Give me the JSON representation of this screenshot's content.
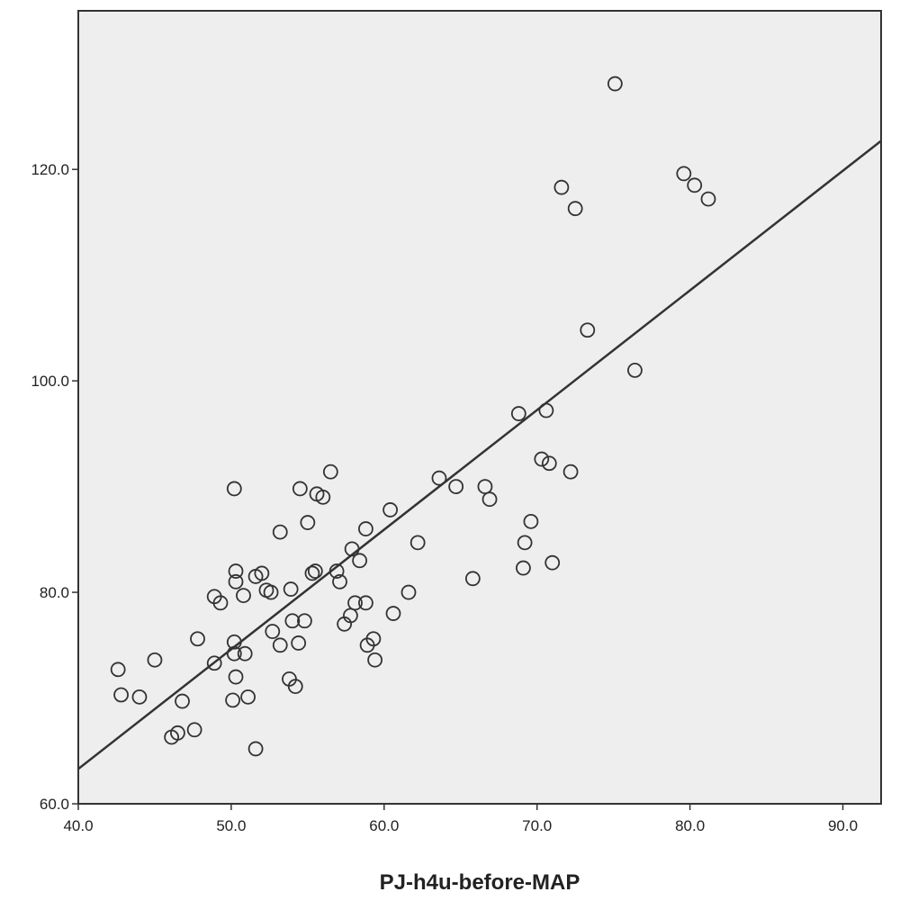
{
  "chart_data": {
    "type": "scatter",
    "title": "",
    "xlabel": "PJ-h4u-before-MAP",
    "ylabel": "",
    "xlim": [
      40,
      92.5
    ],
    "ylim": [
      60,
      135
    ],
    "x_ticks": [
      40,
      50,
      60,
      70,
      80,
      90
    ],
    "x_tick_labels": [
      "40.0",
      "50.0",
      "60.0",
      "70.0",
      "80.0",
      "90.0"
    ],
    "y_ticks": [
      60,
      80,
      100,
      120
    ],
    "y_tick_labels": [
      "60.0",
      "80.0",
      "100.0",
      "120.0"
    ],
    "grid": false,
    "legend": "none",
    "colors": {
      "plot_background": "#eeeeee",
      "frame": "#333333",
      "marker": "#333333",
      "fit_line": "#333333"
    },
    "marker": "open-circle",
    "series": [
      {
        "points": [
          [
            42.6,
            72.7
          ],
          [
            42.8,
            70.3
          ],
          [
            44.0,
            70.1
          ],
          [
            45.0,
            73.6
          ],
          [
            46.1,
            66.3
          ],
          [
            46.5,
            66.7
          ],
          [
            46.8,
            69.7
          ],
          [
            47.6,
            67.0
          ],
          [
            47.8,
            75.6
          ],
          [
            48.9,
            73.3
          ],
          [
            48.9,
            79.6
          ],
          [
            49.3,
            79.0
          ],
          [
            50.1,
            69.8
          ],
          [
            50.2,
            89.8
          ],
          [
            50.2,
            75.3
          ],
          [
            50.2,
            74.2
          ],
          [
            50.3,
            72.0
          ],
          [
            50.3,
            82.0
          ],
          [
            50.3,
            81.0
          ],
          [
            50.8,
            79.7
          ],
          [
            50.9,
            74.2
          ],
          [
            51.1,
            70.1
          ],
          [
            51.6,
            65.2
          ],
          [
            51.6,
            81.5
          ],
          [
            52.0,
            81.8
          ],
          [
            52.3,
            80.2
          ],
          [
            52.6,
            80.0
          ],
          [
            52.7,
            76.3
          ],
          [
            53.2,
            85.7
          ],
          [
            53.2,
            75.0
          ],
          [
            53.8,
            71.8
          ],
          [
            53.9,
            80.3
          ],
          [
            54.0,
            77.3
          ],
          [
            54.2,
            71.1
          ],
          [
            54.4,
            75.2
          ],
          [
            54.5,
            89.8
          ],
          [
            54.8,
            77.3
          ],
          [
            55.0,
            86.6
          ],
          [
            55.3,
            81.8
          ],
          [
            55.5,
            82.0
          ],
          [
            55.6,
            89.3
          ],
          [
            56.0,
            89.0
          ],
          [
            56.5,
            91.4
          ],
          [
            56.9,
            82.0
          ],
          [
            57.1,
            81.0
          ],
          [
            57.4,
            77.0
          ],
          [
            57.8,
            77.8
          ],
          [
            57.9,
            84.1
          ],
          [
            58.1,
            79.0
          ],
          [
            58.4,
            83.0
          ],
          [
            58.8,
            79.0
          ],
          [
            58.8,
            86.0
          ],
          [
            58.9,
            75.0
          ],
          [
            59.3,
            75.6
          ],
          [
            59.4,
            73.6
          ],
          [
            60.4,
            87.8
          ],
          [
            60.6,
            78.0
          ],
          [
            61.6,
            80.0
          ],
          [
            62.2,
            84.7
          ],
          [
            63.6,
            90.8
          ],
          [
            64.7,
            90.0
          ],
          [
            65.8,
            81.3
          ],
          [
            66.6,
            90.0
          ],
          [
            66.9,
            88.8
          ],
          [
            68.8,
            96.9
          ],
          [
            69.1,
            82.3
          ],
          [
            69.2,
            84.7
          ],
          [
            69.6,
            86.7
          ],
          [
            70.3,
            92.6
          ],
          [
            70.6,
            97.2
          ],
          [
            70.8,
            92.2
          ],
          [
            71.0,
            82.8
          ],
          [
            71.6,
            118.3
          ],
          [
            72.2,
            91.4
          ],
          [
            72.5,
            116.3
          ],
          [
            73.3,
            104.8
          ],
          [
            75.1,
            128.1
          ],
          [
            76.4,
            101.0
          ],
          [
            79.6,
            119.6
          ],
          [
            80.3,
            118.5
          ],
          [
            81.2,
            117.2
          ]
        ]
      }
    ],
    "fit_line": {
      "x": [
        40.0,
        92.5
      ],
      "y": [
        63.3,
        122.7
      ]
    }
  }
}
